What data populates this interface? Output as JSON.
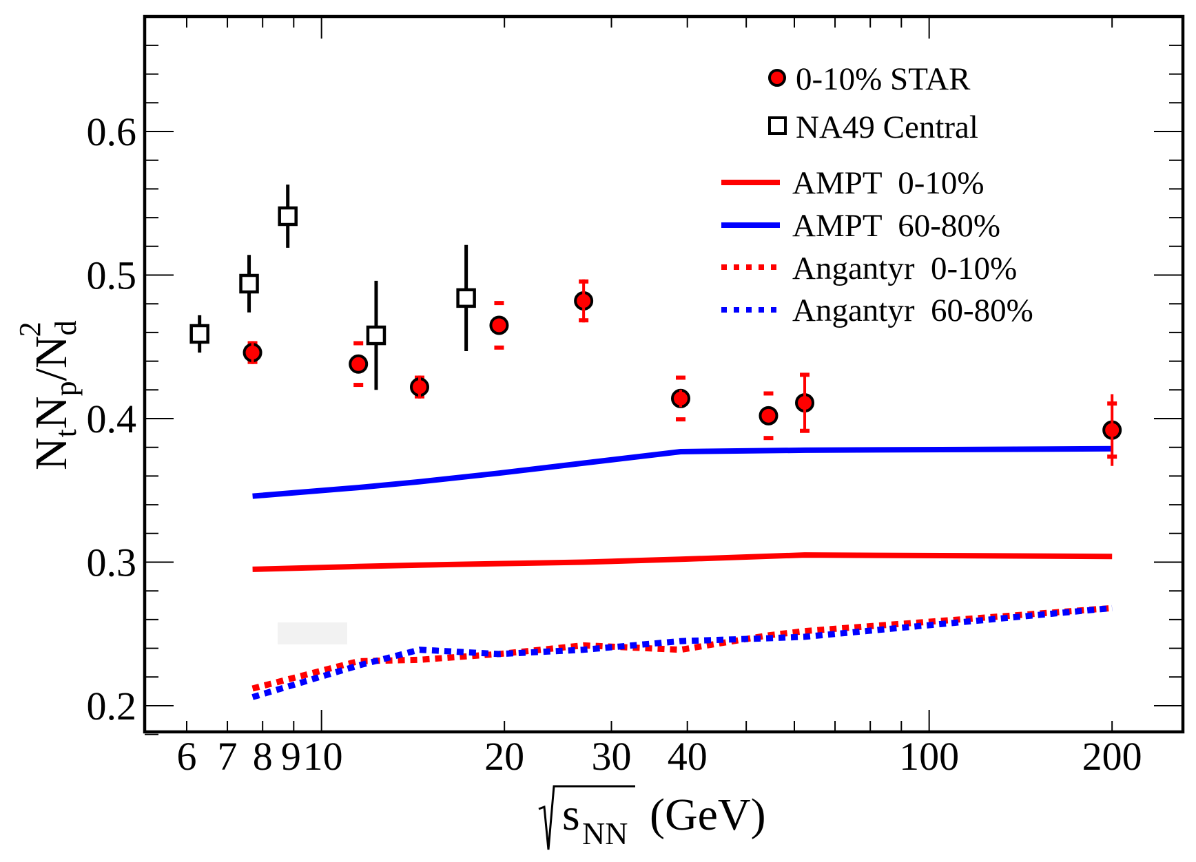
{
  "chart_data": {
    "type": "scatter",
    "title": "",
    "xlabel": "sqrt(s_NN) (GeV)",
    "xlabel_parts": {
      "var": "s",
      "sub": "NN",
      "unit": "(GeV)"
    },
    "ylabel": "N_t N_p / N_d^2",
    "ylabel_parts": {
      "n1": "N",
      "s1": "t",
      "n2": "N",
      "s2": "p",
      "slash": "/",
      "n3": "N",
      "s3": "d",
      "sup": "2"
    },
    "xscale": "log",
    "xlim": [
      5.1,
      262
    ],
    "ylim": [
      0.182,
      0.68
    ],
    "x_ticks": [
      {
        "v": 6,
        "label": "6",
        "major": false
      },
      {
        "v": 7,
        "label": "7",
        "major": false
      },
      {
        "v": 8,
        "label": "8",
        "major": false
      },
      {
        "v": 9,
        "label": "9",
        "major": false
      },
      {
        "v": 10,
        "label": "10",
        "major": true
      },
      {
        "v": 20,
        "label": "20",
        "major": false
      },
      {
        "v": 30,
        "label": "30",
        "major": false
      },
      {
        "v": 40,
        "label": "40",
        "major": false
      },
      {
        "v": 50,
        "label": "",
        "major": false
      },
      {
        "v": 60,
        "label": "",
        "major": false
      },
      {
        "v": 70,
        "label": "",
        "major": false
      },
      {
        "v": 80,
        "label": "",
        "major": false
      },
      {
        "v": 90,
        "label": "",
        "major": false
      },
      {
        "v": 100,
        "label": "100",
        "major": true
      },
      {
        "v": 200,
        "label": "200",
        "major": false
      }
    ],
    "y_ticks": [
      {
        "v": 0.2,
        "label": "0.2"
      },
      {
        "v": 0.3,
        "label": "0.3"
      },
      {
        "v": 0.4,
        "label": "0.4"
      },
      {
        "v": 0.5,
        "label": "0.5"
      },
      {
        "v": 0.6,
        "label": "0.6"
      }
    ],
    "y_minor_step": 0.02,
    "grid": false,
    "legend_position": "top-right",
    "series": [
      {
        "name": "0-10% STAR",
        "kind": "points",
        "marker": "circle",
        "color": "#ff0000",
        "edge": "#000000",
        "x": [
          7.7,
          11.5,
          14.5,
          19.6,
          27,
          39,
          54.4,
          62.4,
          200
        ],
        "y": [
          0.446,
          0.438,
          0.422,
          0.465,
          0.482,
          0.414,
          0.402,
          0.411,
          0.392
        ],
        "stat_err": [
          0.008,
          0.004,
          0.008,
          0.004,
          0.015,
          0.006,
          0.001,
          0.02,
          0.025
        ],
        "sys_err": [
          0.007,
          0.015,
          0.007,
          0.016,
          0.014,
          0.015,
          0.016,
          0.02,
          0.019
        ]
      },
      {
        "name": "NA49 Central",
        "kind": "points",
        "marker": "open-square",
        "color": "#000000",
        "x": [
          6.3,
          7.6,
          8.8,
          12.3,
          17.3
        ],
        "y": [
          0.459,
          0.494,
          0.541,
          0.458,
          0.484
        ],
        "stat_err": [
          0.013,
          0.02,
          0.022,
          0.038,
          0.037
        ]
      },
      {
        "name": "AMPT  0-10%",
        "kind": "line",
        "style": "solid",
        "color": "#ff0000",
        "x": [
          7.7,
          11.5,
          14.5,
          19.6,
          27,
          39,
          62.4,
          200
        ],
        "y": [
          0.295,
          0.297,
          0.298,
          0.299,
          0.3,
          0.302,
          0.305,
          0.304
        ]
      },
      {
        "name": "AMPT  60-80%",
        "kind": "line",
        "style": "solid",
        "color": "#0000ff",
        "x": [
          7.7,
          11.5,
          14.5,
          19.6,
          27,
          39,
          62.4,
          200
        ],
        "y": [
          0.346,
          0.352,
          0.356,
          0.362,
          0.369,
          0.377,
          0.378,
          0.379
        ]
      },
      {
        "name": "Angantyr  0-10%",
        "kind": "line",
        "style": "dotted",
        "color": "#ff0000",
        "x": [
          7.7,
          11.5,
          14.5,
          19.6,
          27,
          39,
          54.4,
          62.4,
          200
        ],
        "y": [
          0.212,
          0.231,
          0.232,
          0.236,
          0.242,
          0.239,
          0.249,
          0.252,
          0.268
        ]
      },
      {
        "name": "Angantyr  60-80%",
        "kind": "line",
        "style": "dotted",
        "color": "#0000ff",
        "x": [
          7.7,
          11.5,
          14.5,
          19.6,
          27,
          39,
          54.4,
          62.4,
          200
        ],
        "y": [
          0.206,
          0.228,
          0.239,
          0.236,
          0.239,
          0.245,
          0.247,
          0.248,
          0.268
        ]
      }
    ],
    "legend": [
      {
        "label": "0-10% STAR",
        "series": 0
      },
      {
        "label": "NA49 Central",
        "series": 1
      },
      {
        "label": "AMPT  0-10%",
        "series": 2
      },
      {
        "label": "AMPT  60-80%",
        "series": 3
      },
      {
        "label": "Angantyr  0-10%",
        "series": 4
      },
      {
        "label": "Angantyr  60-80%",
        "series": 5
      }
    ]
  }
}
